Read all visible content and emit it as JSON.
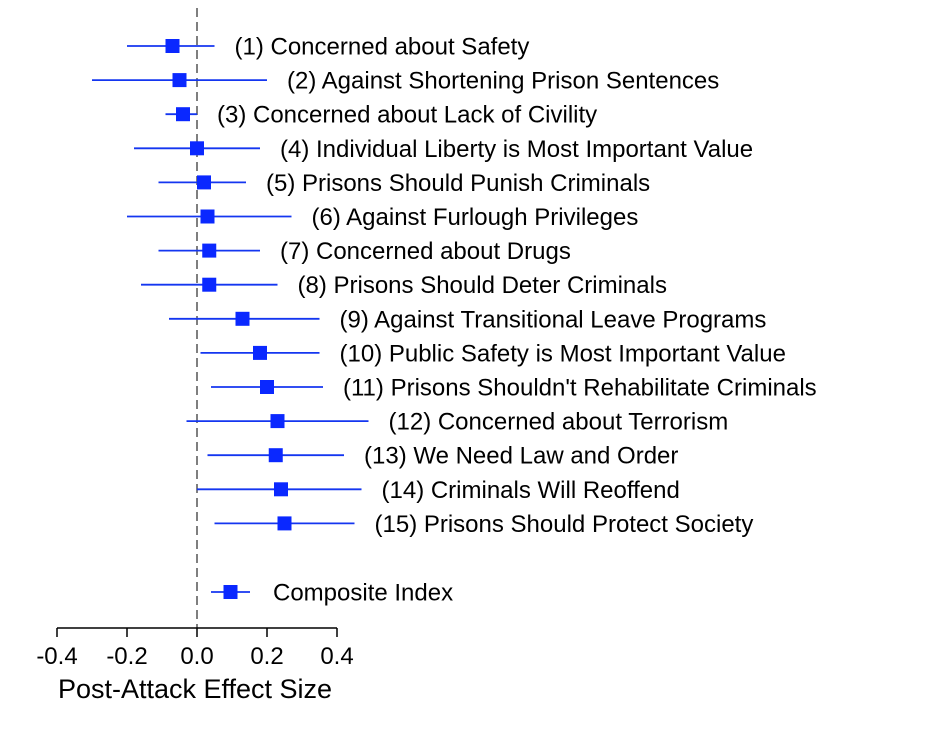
{
  "chart_data": {
    "type": "coefficient-plot",
    "xlabel": "Post-Attack Effect Size",
    "xlim": [
      -0.4,
      0.4
    ],
    "xticks": [
      -0.4,
      -0.2,
      0.0,
      0.2,
      0.4
    ],
    "xtick_labels": [
      "-0.4",
      "-0.2",
      "0.0",
      "0.2",
      "0.4"
    ],
    "reference_line": 0,
    "marker_color": "#0a28ff",
    "line_color": "#1436f0",
    "items": [
      {
        "label": "(1) Concerned about Safety",
        "estimate": -0.07,
        "ci": [
          -0.2,
          0.05
        ]
      },
      {
        "label": "(2) Against Shortening Prison Sentences",
        "estimate": -0.05,
        "ci": [
          -0.3,
          0.2
        ]
      },
      {
        "label": "(3) Concerned about Lack of Civility",
        "estimate": -0.04,
        "ci": [
          -0.09,
          0.0
        ]
      },
      {
        "label": "(4) Individual Liberty is Most Important Value",
        "estimate": 0.0,
        "ci": [
          -0.18,
          0.18
        ]
      },
      {
        "label": "(5) Prisons Should Punish Criminals",
        "estimate": 0.02,
        "ci": [
          -0.11,
          0.14
        ]
      },
      {
        "label": "(6)  Against Furlough Privileges",
        "estimate": 0.03,
        "ci": [
          -0.2,
          0.27
        ]
      },
      {
        "label": "(7) Concerned about Drugs",
        "estimate": 0.035,
        "ci": [
          -0.11,
          0.18
        ]
      },
      {
        "label": "(8) Prisons Should Deter Criminals",
        "estimate": 0.035,
        "ci": [
          -0.16,
          0.23
        ]
      },
      {
        "label": "(9) Against Transitional Leave Programs",
        "estimate": 0.13,
        "ci": [
          -0.08,
          0.35
        ]
      },
      {
        "label": "(10) Public Safety is Most Important Value",
        "estimate": 0.18,
        "ci": [
          0.01,
          0.35
        ]
      },
      {
        "label": "(11) Prisons Shouldn't Rehabilitate Criminals",
        "estimate": 0.2,
        "ci": [
          0.04,
          0.36
        ]
      },
      {
        "label": "(12) Concerned about Terrorism",
        "estimate": 0.23,
        "ci": [
          -0.03,
          0.49
        ]
      },
      {
        "label": "(13) We Need Law and Order",
        "estimate": 0.225,
        "ci": [
          0.03,
          0.42
        ]
      },
      {
        "label": "(14) Criminals Will Reoffend",
        "estimate": 0.24,
        "ci": [
          0.0,
          0.47
        ]
      },
      {
        "label": "(15) Prisons Should Protect Society",
        "estimate": 0.25,
        "ci": [
          0.05,
          0.45
        ]
      }
    ],
    "legend": {
      "label": "Composite Index"
    }
  }
}
